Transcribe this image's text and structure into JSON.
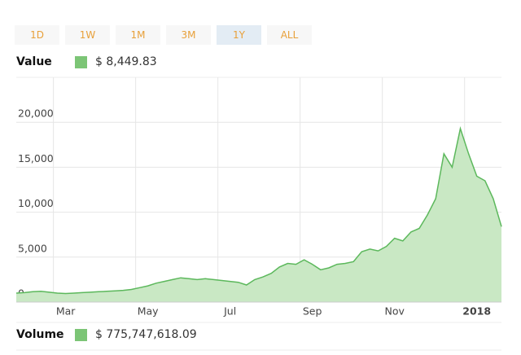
{
  "range_buttons": [
    "1D",
    "1W",
    "1M",
    "3M",
    "1Y",
    "ALL"
  ],
  "selected_range": "1Y",
  "value_label": "Value",
  "value_display": "$ 8,449.83",
  "volume_label": "Volume",
  "volume_display": "$ 775,747,618.09",
  "chart_data": {
    "type": "area",
    "categories": [
      null,
      null,
      null,
      null,
      null,
      null,
      "Mar",
      null,
      null,
      null,
      null,
      null,
      null,
      null,
      null,
      null,
      "May",
      null,
      null,
      null,
      null,
      null,
      null,
      null,
      null,
      null,
      "Jul",
      null,
      null,
      null,
      null,
      null,
      null,
      null,
      null,
      null,
      "Sep",
      null,
      null,
      null,
      null,
      null,
      null,
      null,
      null,
      null,
      "Nov",
      null,
      null,
      null,
      null,
      null,
      null,
      null,
      null,
      null,
      "2018",
      null,
      null,
      null
    ],
    "values": [
      1000,
      1050,
      1150,
      1200,
      1100,
      1000,
      950,
      1000,
      1050,
      1100,
      1150,
      1200,
      1250,
      1300,
      1400,
      1600,
      1800,
      2100,
      2300,
      2500,
      2700,
      2600,
      2500,
      2600,
      2500,
      2400,
      2300,
      2200,
      1900,
      2500,
      2800,
      3200,
      3900,
      4300,
      4200,
      4700,
      4200,
      3600,
      3800,
      4200,
      4300,
      4500,
      5600,
      5900,
      5700,
      6200,
      7100,
      6800,
      7800,
      8200,
      9700,
      11500,
      16500,
      15000,
      19300,
      16500,
      14000,
      13500,
      11500,
      8400
    ],
    "color": "#5cb85c",
    "fill_color": "#c9e8c4",
    "ylim": [
      0,
      25000
    ],
    "yticks": [
      0,
      {
        "value": 5000,
        "label": "5,000"
      },
      {
        "value": 10000,
        "label": "10,000"
      },
      {
        "value": 15000,
        "label": "15,000"
      },
      {
        "value": 20000,
        "label": "20,000"
      }
    ],
    "grid": true
  }
}
